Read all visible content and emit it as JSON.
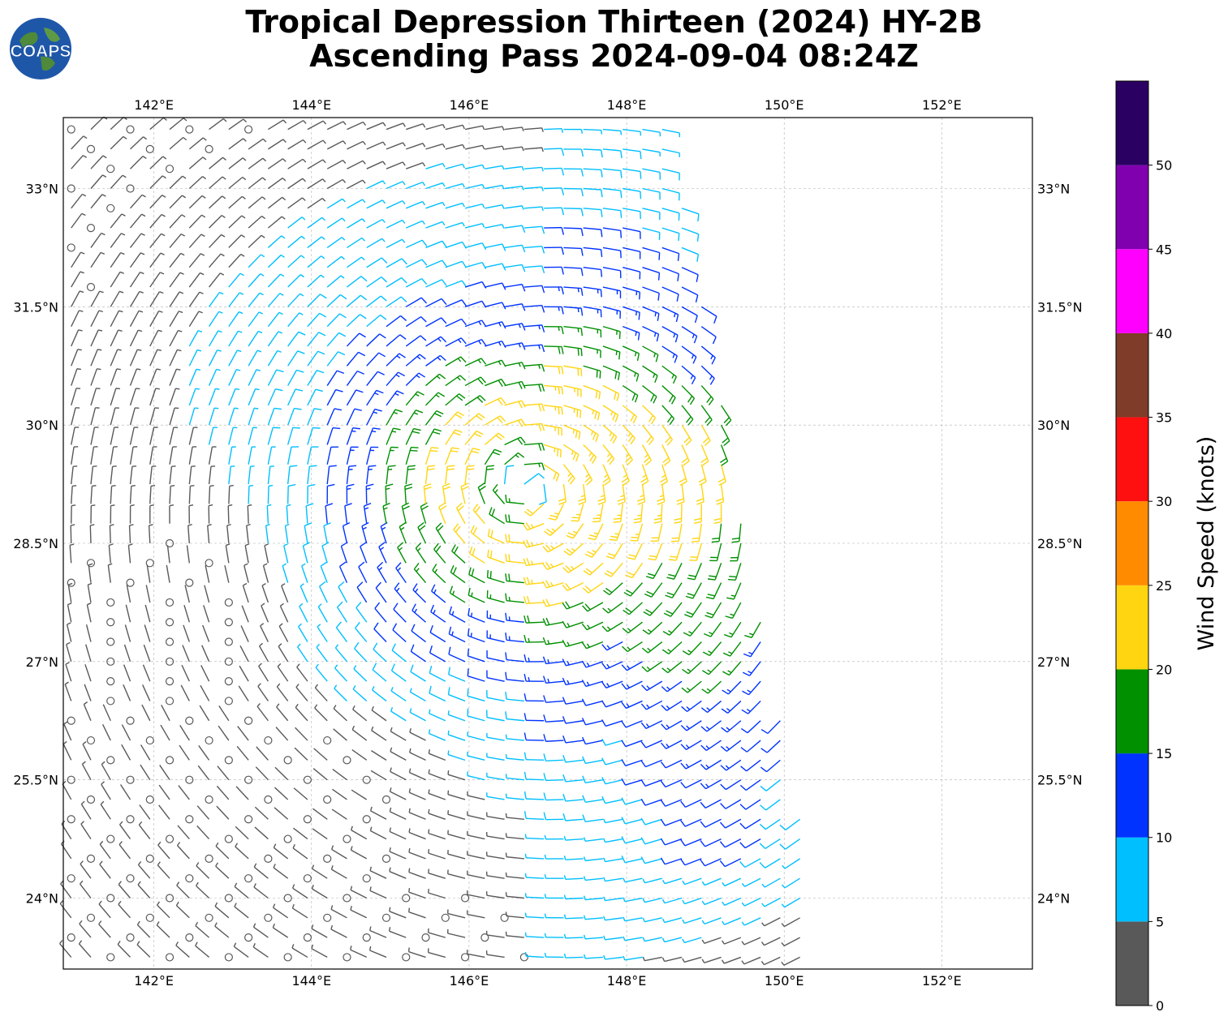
{
  "title": {
    "line1": "Tropical Depression Thirteen (2024) HY-2B",
    "line2": "Ascending Pass 2024-09-04 08:24Z"
  },
  "logo": {
    "text": "COAPS",
    "icon": "globe-logo-icon"
  },
  "chart_data": {
    "type": "wind-barb-map",
    "x_axis": {
      "ticks": [
        142,
        144,
        146,
        148,
        150,
        152
      ],
      "tick_labels": [
        "142°E",
        "144°E",
        "146°E",
        "148°E",
        "150°E",
        "152°E"
      ],
      "range": [
        140.85,
        153.15
      ]
    },
    "y_axis": {
      "ticks": [
        24,
        25.5,
        27,
        28.5,
        30,
        31.5,
        33
      ],
      "tick_labels": [
        "24°N",
        "25.5°N",
        "27°N",
        "28.5°N",
        "30°N",
        "31.5°N",
        "33°N"
      ],
      "range": [
        23.1,
        33.9
      ]
    },
    "grid": true,
    "storm_center": {
      "lon": 146.7,
      "lat": 29.25
    },
    "swath_east_edge": [
      [
        148.5,
        33.8
      ],
      [
        149.0,
        31.5
      ],
      [
        149.8,
        27.0
      ],
      [
        150.2,
        25.0
      ],
      [
        150.4,
        23.1
      ]
    ],
    "colorbar": {
      "label": "Wind Speed (knots)",
      "ticks": [
        0,
        5,
        10,
        15,
        20,
        25,
        30,
        35,
        40,
        45,
        50
      ],
      "tick_labels": [
        "0",
        "5",
        "10",
        "15",
        "20",
        "25",
        "30",
        "35",
        "40",
        "45",
        "50"
      ],
      "bins": [
        {
          "min": 0,
          "max": 5,
          "color": "#595959"
        },
        {
          "min": 5,
          "max": 10,
          "color": "#00bfff"
        },
        {
          "min": 10,
          "max": 15,
          "color": "#0033ff"
        },
        {
          "min": 15,
          "max": 20,
          "color": "#009000"
        },
        {
          "min": 20,
          "max": 25,
          "color": "#ffd511"
        },
        {
          "min": 25,
          "max": 30,
          "color": "#ff8c00"
        },
        {
          "min": 30,
          "max": 35,
          "color": "#ff1010"
        },
        {
          "min": 35,
          "max": 40,
          "color": "#7f3c28"
        },
        {
          "min": 40,
          "max": 45,
          "color": "#ff00ff"
        },
        {
          "min": 45,
          "max": 50,
          "color": "#8000b0"
        },
        {
          "min": 50,
          "max": 55,
          "color": "#2a0062"
        }
      ]
    }
  }
}
